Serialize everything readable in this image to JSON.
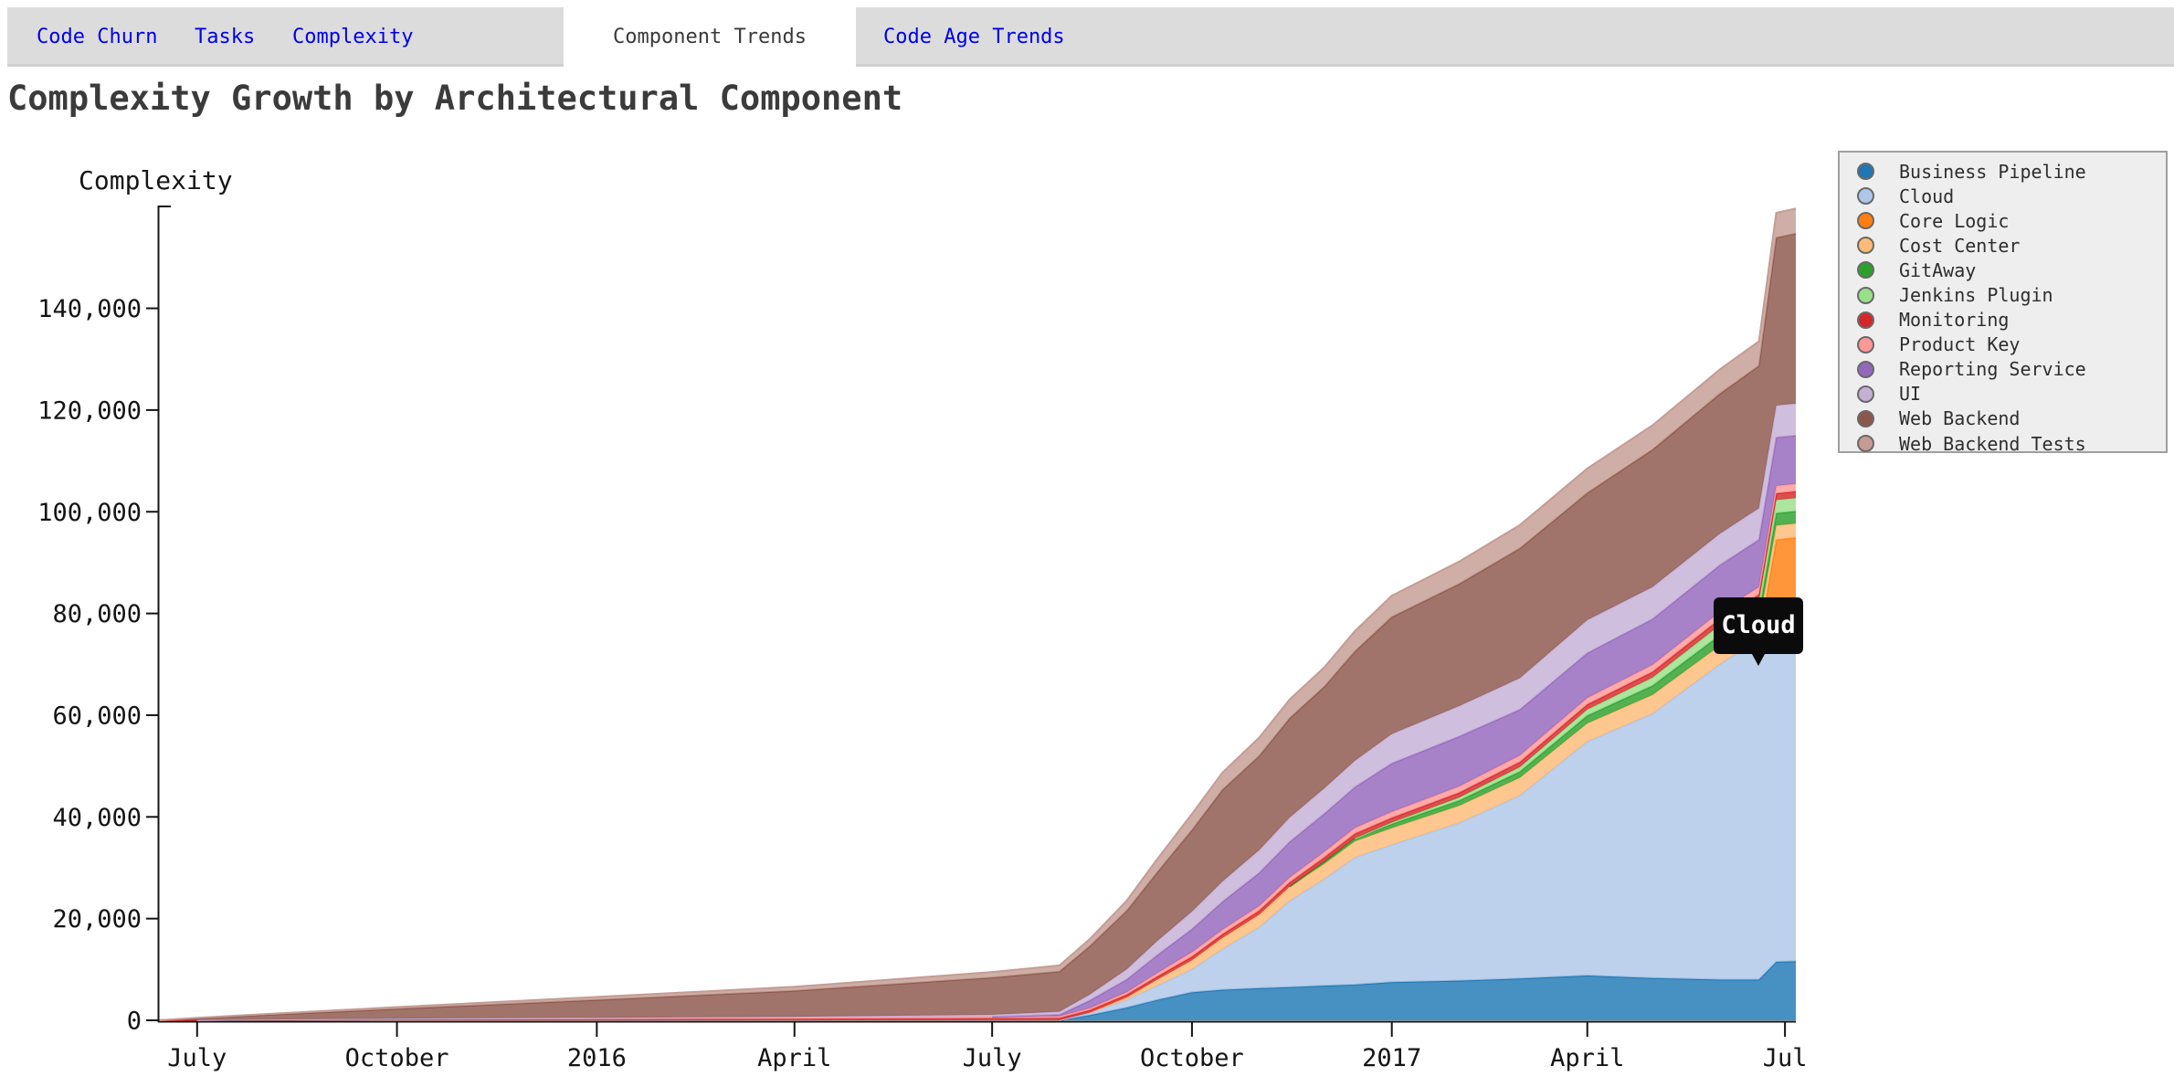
{
  "tabs": {
    "items": [
      {
        "label": "Code Churn",
        "active": false
      },
      {
        "label": "Tasks",
        "active": false
      },
      {
        "label": "Complexity",
        "active": false
      },
      {
        "label": "Component Trends",
        "active": true
      },
      {
        "label": "Code Age Trends",
        "active": false
      }
    ]
  },
  "title": "Complexity Growth by Architectural Component",
  "tooltip": {
    "label": "Cloud"
  },
  "chart_data": {
    "type": "area",
    "stacked": true,
    "title": "Complexity Growth by Architectural Component",
    "xlabel": "",
    "ylabel": "Complexity",
    "ylim": [
      0,
      160000
    ],
    "grid": false,
    "legend_position": "right",
    "x_domain": [
      "2015-06-13",
      "2017-07-06"
    ],
    "y_ticks": [
      {
        "value": 0,
        "label": "0"
      },
      {
        "value": 20000,
        "label": "20,000"
      },
      {
        "value": 40000,
        "label": "40,000"
      },
      {
        "value": 60000,
        "label": "60,000"
      },
      {
        "value": 80000,
        "label": "80,000"
      },
      {
        "value": 100000,
        "label": "100,000"
      },
      {
        "value": 120000,
        "label": "120,000"
      },
      {
        "value": 140000,
        "label": "140,000"
      }
    ],
    "x_ticks": [
      {
        "date": "2015-07-01",
        "label": "July"
      },
      {
        "date": "2015-10-01",
        "label": "October"
      },
      {
        "date": "2016-01-01",
        "label": "2016"
      },
      {
        "date": "2016-04-01",
        "label": "April"
      },
      {
        "date": "2016-07-01",
        "label": "July"
      },
      {
        "date": "2016-10-01",
        "label": "October"
      },
      {
        "date": "2017-01-01",
        "label": "2017"
      },
      {
        "date": "2017-04-01",
        "label": "April"
      },
      {
        "date": "2017-07-01",
        "label": "Jul"
      }
    ],
    "dates": [
      "2015-06-13",
      "2015-07-01",
      "2015-10-01",
      "2016-01-01",
      "2016-04-01",
      "2016-07-01",
      "2016-08-01",
      "2016-08-15",
      "2016-09-01",
      "2016-09-15",
      "2016-10-01",
      "2016-10-15",
      "2016-11-01",
      "2016-11-15",
      "2016-12-01",
      "2016-12-15",
      "2017-01-01",
      "2017-02-01",
      "2017-03-01",
      "2017-04-01",
      "2017-05-01",
      "2017-06-01",
      "2017-06-19",
      "2017-06-27",
      "2017-07-06"
    ],
    "series": [
      {
        "name": "Business Pipeline",
        "color": "#1f77b4",
        "values": [
          0,
          0,
          0,
          0,
          0,
          0,
          0,
          1000,
          2500,
          4000,
          5500,
          6000,
          6300,
          6500,
          6800,
          7000,
          7500,
          7800,
          8200,
          8800,
          8300,
          8000,
          8000,
          11500,
          11600
        ]
      },
      {
        "name": "Cloud",
        "color": "#aec7e8",
        "values": [
          0,
          0,
          0,
          0,
          0,
          0,
          0,
          500,
          1500,
          2800,
          4500,
          8000,
          12000,
          17000,
          21000,
          25000,
          27000,
          31000,
          36000,
          46000,
          52000,
          62000,
          67000,
          61000,
          61300
        ]
      },
      {
        "name": "Core Logic",
        "color": "#ff7f0e",
        "values": [
          0,
          0,
          0,
          0,
          0,
          0,
          0,
          0,
          0,
          0,
          0,
          0,
          0,
          0,
          0,
          0,
          0,
          0,
          0,
          0,
          0,
          0,
          0,
          22000,
          22000
        ]
      },
      {
        "name": "Cost Center",
        "color": "#ffbb78",
        "values": [
          0,
          0,
          0,
          0,
          0,
          0,
          0,
          0,
          500,
          1200,
          1800,
          2200,
          2500,
          2800,
          3000,
          3200,
          3300,
          3400,
          3500,
          3600,
          3700,
          3700,
          2800,
          2800,
          2800
        ]
      },
      {
        "name": "GitAway",
        "color": "#2ca02c",
        "values": [
          0,
          0,
          0,
          0,
          0,
          0,
          0,
          0,
          0,
          0,
          0,
          0,
          0,
          0,
          400,
          600,
          800,
          1000,
          1200,
          1500,
          1800,
          2000,
          2200,
          2400,
          2400
        ]
      },
      {
        "name": "Jenkins Plugin",
        "color": "#98df8a",
        "values": [
          0,
          0,
          0,
          0,
          0,
          0,
          0,
          0,
          0,
          0,
          0,
          0,
          0,
          0,
          0,
          0,
          300,
          600,
          900,
          1200,
          1600,
          2000,
          2400,
          2600,
          2600
        ]
      },
      {
        "name": "Monitoring",
        "color": "#d62728",
        "values": [
          0,
          60,
          200,
          250,
          300,
          400,
          450,
          500,
          550,
          600,
          700,
          700,
          750,
          800,
          850,
          900,
          900,
          950,
          1000,
          1000,
          1100,
          1200,
          1300,
          1300,
          1300
        ]
      },
      {
        "name": "Product Key",
        "color": "#ff9896",
        "values": [
          0,
          0,
          100,
          150,
          200,
          300,
          350,
          400,
          500,
          700,
          900,
          900,
          950,
          1000,
          1100,
          1150,
          1200,
          1250,
          1300,
          1300,
          1400,
          1400,
          1500,
          1500,
          1500
        ]
      },
      {
        "name": "Reporting Service",
        "color": "#9467bd",
        "values": [
          0,
          0,
          0,
          0,
          0,
          0,
          300,
          1500,
          2500,
          3500,
          4500,
          5500,
          6500,
          7000,
          7500,
          8000,
          9500,
          9800,
          9000,
          8800,
          9000,
          9200,
          9300,
          9500,
          9500
        ]
      },
      {
        "name": "UI",
        "color": "#c5b0d5",
        "values": [
          0,
          0,
          50,
          100,
          200,
          400,
          600,
          1200,
          2000,
          2800,
          3500,
          4000,
          4500,
          4800,
          5000,
          5200,
          5800,
          6000,
          6200,
          6500,
          6300,
          6200,
          6200,
          6300,
          6300
        ]
      },
      {
        "name": "Web Backend",
        "color": "#8c564b",
        "values": [
          0,
          350,
          1900,
          3500,
          5100,
          7300,
          7900,
          9500,
          11500,
          13500,
          16000,
          18000,
          18500,
          19500,
          20000,
          21500,
          23000,
          24000,
          25500,
          25000,
          27000,
          27500,
          28000,
          33000,
          33400
        ]
      },
      {
        "name": "Web Backend Tests",
        "color": "#c49c94",
        "values": [
          0,
          100,
          350,
          600,
          800,
          1100,
          1200,
          1400,
          2000,
          2600,
          3200,
          3400,
          3600,
          3700,
          3800,
          4000,
          4200,
          4400,
          4600,
          4800,
          4800,
          4800,
          4800,
          4900,
          4900
        ]
      }
    ]
  }
}
